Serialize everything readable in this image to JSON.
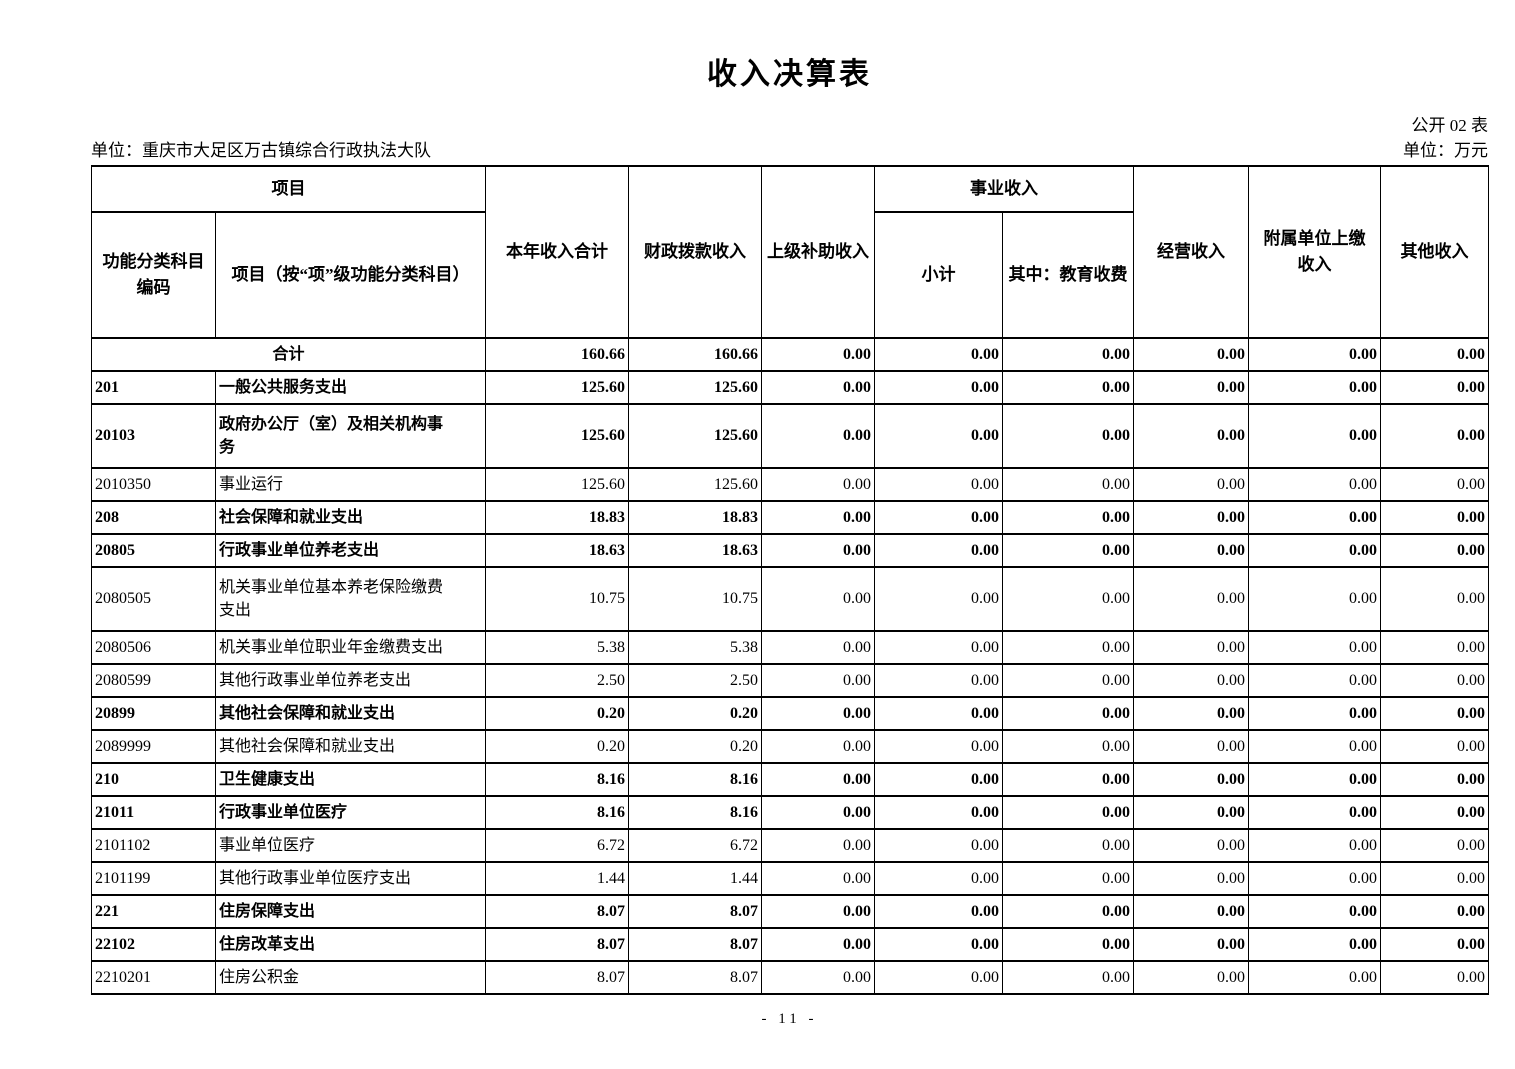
{
  "page": {
    "title": "收入决算表",
    "doc_code": "公开 02 表",
    "unit_name": "单位：重庆市大足区万古镇综合行政执法大队",
    "unit_measure": "单位：万元",
    "page_number": "-  11  -"
  },
  "table": {
    "header": {
      "project_group": "项目",
      "function_code": [
        "功能分类科目",
        "编码"
      ],
      "item_name": "项目（按“项”级功能分类科目）",
      "annual_total": "本年收入合计",
      "fiscal_allocation": "财政拨款收入",
      "superior_subsidy": "上级补助收入",
      "business_income_group": "事业收入",
      "business_subtotal": "小计",
      "education_fees": "其中：教育收费",
      "operating_income": "经营收入",
      "affiliated_remittance": [
        "附属单位上缴",
        "收入"
      ],
      "other_income": "其他收入"
    },
    "rows": [
      {
        "code": "",
        "item": "合计",
        "merged": true,
        "emphasis": true,
        "values": [
          "160.66",
          "160.66",
          "0.00",
          "0.00",
          "0.00",
          "0.00",
          "0.00",
          "0.00"
        ]
      },
      {
        "code": "201",
        "item": "一般公共服务支出",
        "emphasis": true,
        "values": [
          "125.60",
          "125.60",
          "0.00",
          "0.00",
          "0.00",
          "0.00",
          "0.00",
          "0.00"
        ]
      },
      {
        "code": "20103",
        "item": [
          "政府办公厅（室）及相关机构事",
          "务"
        ],
        "emphasis": true,
        "values": [
          "125.60",
          "125.60",
          "0.00",
          "0.00",
          "0.00",
          "0.00",
          "0.00",
          "0.00"
        ]
      },
      {
        "code": "2010350",
        "item": "事业运行",
        "emphasis": false,
        "values": [
          "125.60",
          "125.60",
          "0.00",
          "0.00",
          "0.00",
          "0.00",
          "0.00",
          "0.00"
        ]
      },
      {
        "code": "208",
        "item": "社会保障和就业支出",
        "emphasis": true,
        "values": [
          "18.83",
          "18.83",
          "0.00",
          "0.00",
          "0.00",
          "0.00",
          "0.00",
          "0.00"
        ]
      },
      {
        "code": "20805",
        "item": "行政事业单位养老支出",
        "emphasis": true,
        "values": [
          "18.63",
          "18.63",
          "0.00",
          "0.00",
          "0.00",
          "0.00",
          "0.00",
          "0.00"
        ]
      },
      {
        "code": "2080505",
        "item": [
          "机关事业单位基本养老保险缴费",
          "支出"
        ],
        "emphasis": false,
        "values": [
          "10.75",
          "10.75",
          "0.00",
          "0.00",
          "0.00",
          "0.00",
          "0.00",
          "0.00"
        ]
      },
      {
        "code": "2080506",
        "item": "机关事业单位职业年金缴费支出",
        "emphasis": false,
        "values": [
          "5.38",
          "5.38",
          "0.00",
          "0.00",
          "0.00",
          "0.00",
          "0.00",
          "0.00"
        ]
      },
      {
        "code": "2080599",
        "item": "其他行政事业单位养老支出",
        "emphasis": false,
        "values": [
          "2.50",
          "2.50",
          "0.00",
          "0.00",
          "0.00",
          "0.00",
          "0.00",
          "0.00"
        ]
      },
      {
        "code": "20899",
        "item": "其他社会保障和就业支出",
        "emphasis": true,
        "values": [
          "0.20",
          "0.20",
          "0.00",
          "0.00",
          "0.00",
          "0.00",
          "0.00",
          "0.00"
        ]
      },
      {
        "code": "2089999",
        "item": "其他社会保障和就业支出",
        "emphasis": false,
        "values": [
          "0.20",
          "0.20",
          "0.00",
          "0.00",
          "0.00",
          "0.00",
          "0.00",
          "0.00"
        ]
      },
      {
        "code": "210",
        "item": "卫生健康支出",
        "emphasis": true,
        "values": [
          "8.16",
          "8.16",
          "0.00",
          "0.00",
          "0.00",
          "0.00",
          "0.00",
          "0.00"
        ]
      },
      {
        "code": "21011",
        "item": "行政事业单位医疗",
        "emphasis": true,
        "values": [
          "8.16",
          "8.16",
          "0.00",
          "0.00",
          "0.00",
          "0.00",
          "0.00",
          "0.00"
        ]
      },
      {
        "code": "2101102",
        "item": "事业单位医疗",
        "emphasis": false,
        "values": [
          "6.72",
          "6.72",
          "0.00",
          "0.00",
          "0.00",
          "0.00",
          "0.00",
          "0.00"
        ]
      },
      {
        "code": "2101199",
        "item": "其他行政事业单位医疗支出",
        "emphasis": false,
        "values": [
          "1.44",
          "1.44",
          "0.00",
          "0.00",
          "0.00",
          "0.00",
          "0.00",
          "0.00"
        ]
      },
      {
        "code": "221",
        "item": "住房保障支出",
        "emphasis": true,
        "values": [
          "8.07",
          "8.07",
          "0.00",
          "0.00",
          "0.00",
          "0.00",
          "0.00",
          "0.00"
        ]
      },
      {
        "code": "22102",
        "item": "住房改革支出",
        "emphasis": true,
        "values": [
          "8.07",
          "8.07",
          "0.00",
          "0.00",
          "0.00",
          "0.00",
          "0.00",
          "0.00"
        ]
      },
      {
        "code": "2210201",
        "item": "住房公积金",
        "emphasis": false,
        "values": [
          "8.07",
          "8.07",
          "0.00",
          "0.00",
          "0.00",
          "0.00",
          "0.00",
          "0.00"
        ]
      }
    ]
  }
}
